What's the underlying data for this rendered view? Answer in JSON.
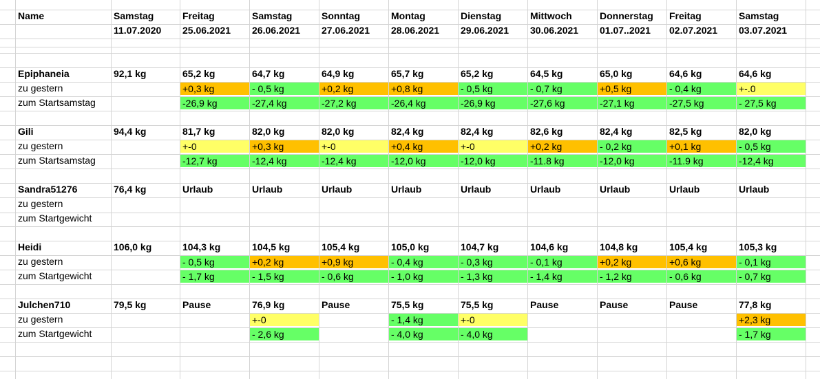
{
  "colors": {
    "green": "#66ff66",
    "orange": "#ffc000",
    "yellow": "#ffff66",
    "grid": "#d4d4d4"
  },
  "header": {
    "name_label": "Name",
    "columns": [
      {
        "day": "Samstag",
        "date": "11.07.2020"
      },
      {
        "day": "Freitag",
        "date": "25.06.2021"
      },
      {
        "day": "Samstag",
        "date": "26.06.2021"
      },
      {
        "day": "Sonntag",
        "date": "27.06.2021"
      },
      {
        "day": "Montag",
        "date": "28.06.2021"
      },
      {
        "day": "Dienstag",
        "date": "29.06.2021"
      },
      {
        "day": "Mittwoch",
        "date": "30.06.2021"
      },
      {
        "day": "Donnerstag",
        "date": "01.07..2021"
      },
      {
        "day": "Freitag",
        "date": "02.07.2021"
      },
      {
        "day": "Samstag",
        "date": "03.07.2021"
      }
    ]
  },
  "people": [
    {
      "name": "Epiphaneia",
      "values": [
        "92,1 kg",
        "65,2 kg",
        "64,7 kg",
        "64,9 kg",
        "65,7 kg",
        "65,2 kg",
        "64,5 kg",
        "65,0 kg",
        "64,6 kg",
        "64,6 kg"
      ],
      "diff_label": "zu gestern",
      "diffs": [
        null,
        "+0,3 kg",
        "- 0,5 kg",
        "+0,2 kg",
        "+0,8 kg",
        "- 0,5 kg",
        "- 0,7 kg",
        "+0,5 kg",
        "- 0,4 kg",
        "+-.0"
      ],
      "diff_colors": [
        null,
        "orange",
        "green",
        "orange",
        "orange",
        "green",
        "green",
        "orange",
        "green",
        "yellow"
      ],
      "start_label": "zum Startsamstag",
      "starts": [
        null,
        "-26,9 kg",
        "-27,4 kg",
        "-27,2 kg",
        "-26,4 kg",
        "-26,9 kg",
        "-27,6 kg",
        "-27,1 kg",
        "-27,5 kg",
        "- 27,5 kg"
      ],
      "start_colors": [
        null,
        "green",
        "green",
        "green",
        "green",
        "green",
        "green",
        "green",
        "green",
        "green"
      ]
    },
    {
      "name": "Gili",
      "values": [
        "94,4 kg",
        "81,7 kg",
        "82,0 kg",
        "82,0 kg",
        "82,4 kg",
        "82,4 kg",
        "82,6 kg",
        "82,4 kg",
        "82,5 kg",
        "82,0 kg"
      ],
      "diff_label": "zu gestern",
      "diffs": [
        null,
        "+-0",
        "+0,3 kg",
        "+-0",
        "+0,4 kg",
        "+-0",
        "+0,2 kg",
        "- 0,2 kg",
        "+0,1 kg",
        "- 0,5 kg"
      ],
      "diff_colors": [
        null,
        "yellow",
        "orange",
        "yellow",
        "orange",
        "yellow",
        "orange",
        "green",
        "orange",
        "green"
      ],
      "start_label": "zum Startsamstag",
      "starts": [
        null,
        "-12,7 kg",
        "-12,4 kg",
        "-12,4 kg",
        "-12,0 kg",
        "-12,0 kg",
        "-11.8 kg",
        "-12,0 kg",
        "-11.9 kg",
        "-12,4 kg"
      ],
      "start_colors": [
        null,
        "green",
        "green",
        "green",
        "green",
        "green",
        "green",
        "green",
        "green",
        "green"
      ]
    },
    {
      "name": "Sandra51276",
      "values": [
        "76,4 kg",
        "Urlaub",
        "Urlaub",
        "Urlaub",
        "Urlaub",
        "Urlaub",
        "Urlaub",
        "Urlaub",
        "Urlaub",
        "Urlaub"
      ],
      "diff_label": "zu gestern",
      "diffs": [
        null,
        null,
        null,
        null,
        null,
        null,
        null,
        null,
        null,
        null
      ],
      "diff_colors": [
        null,
        null,
        null,
        null,
        null,
        null,
        null,
        null,
        null,
        null
      ],
      "start_label": "zum Startgewicht",
      "starts": [
        null,
        null,
        null,
        null,
        null,
        null,
        null,
        null,
        null,
        null
      ],
      "start_colors": [
        null,
        null,
        null,
        null,
        null,
        null,
        null,
        null,
        null,
        null
      ]
    },
    {
      "name": "Heidi",
      "values": [
        "106,0 kg",
        "104,3 kg",
        "104,5 kg",
        "105,4 kg",
        "105,0 kg",
        "104,7 kg",
        "104,6 kg",
        "104,8 kg",
        "105,4 kg",
        "105,3 kg"
      ],
      "diff_label": "zu gestern",
      "diffs": [
        null,
        "- 0,5 kg",
        "+0,2 kg",
        "+0,9 kg",
        "- 0,4 kg",
        "- 0,3 kg",
        "- 0,1 kg",
        "+0,2 kg",
        "+0,6 kg",
        "- 0,1 kg"
      ],
      "diff_colors": [
        null,
        "green",
        "orange",
        "orange",
        "green",
        "green",
        "green",
        "orange",
        "orange",
        "green"
      ],
      "start_label": "zum Startgewicht",
      "starts": [
        null,
        "- 1,7 kg",
        "- 1,5 kg",
        "- 0,6 kg",
        "- 1,0 kg",
        "- 1,3 kg",
        "- 1,4 kg",
        "- 1,2 kg",
        "- 0,6 kg",
        "- 0,7 kg"
      ],
      "start_colors": [
        null,
        "green",
        "green",
        "green",
        "green",
        "green",
        "green",
        "green",
        "green",
        "green"
      ]
    },
    {
      "name": "Julchen710",
      "values": [
        "79,5 kg",
        "Pause",
        "76,9 kg",
        "Pause",
        "75,5 kg",
        "75,5 kg",
        "Pause",
        "Pause",
        "Pause",
        "77,8 kg"
      ],
      "diff_label": "zu gestern",
      "diffs": [
        null,
        null,
        "+-0",
        null,
        "- 1,4 kg",
        "+-0",
        null,
        null,
        null,
        "+2,3 kg"
      ],
      "diff_colors": [
        null,
        null,
        "yellow",
        null,
        "green",
        "yellow",
        null,
        null,
        null,
        "orange"
      ],
      "start_label": "zum Startgewicht",
      "starts": [
        null,
        null,
        "- 2,6 kg",
        null,
        "- 4,0 kg",
        "- 4,0 kg",
        null,
        null,
        null,
        "- 1,7 kg"
      ],
      "start_colors": [
        null,
        null,
        "green",
        null,
        "green",
        "green",
        null,
        null,
        null,
        "green"
      ]
    }
  ]
}
